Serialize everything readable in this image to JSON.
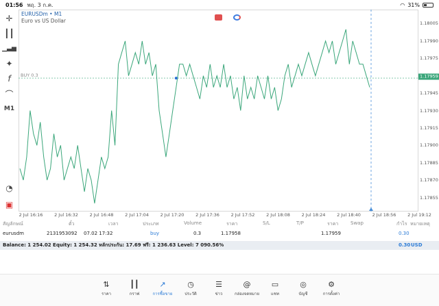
{
  "status": {
    "time": "01:56",
    "date": "พฤ. 3 ก.ค.",
    "battery": "31%"
  },
  "chart": {
    "symbol": "EURUSDm",
    "timeframe_suffix": "• M1",
    "description": "Euro vs US Dollar",
    "timeframe_label": "M1",
    "buy_line_label": "BUY 0.3",
    "current_price": "1.17959",
    "y_ticks": [
      "1.18005",
      "1.17990",
      "1.17975",
      "1.17959",
      "1.17945",
      "1.17930",
      "1.17915",
      "1.17900",
      "1.17885",
      "1.17870",
      "1.17855"
    ],
    "x_ticks": [
      "2 Jul 16:16",
      "2 Jul 16:32",
      "2 Jul 16:48",
      "2 Jul 17:04",
      "2 Jul 17:20",
      "2 Jul 17:36",
      "2 Jul 17:52",
      "2 Jul 18:08",
      "2 Jul 18:24",
      "2 Jul 18:40",
      "2 Jul 18:56",
      "2 Jul 19:12"
    ],
    "line_color": "#3aa67a"
  },
  "chart_data": {
    "type": "line",
    "ylim": [
      1.1785,
      1.1801
    ],
    "values": [
      1.1788,
      1.1787,
      1.1789,
      1.1793,
      1.1791,
      1.179,
      1.1792,
      1.1789,
      1.1787,
      1.1788,
      1.1791,
      1.1789,
      1.179,
      1.1787,
      1.1788,
      1.1789,
      1.1788,
      1.179,
      1.1788,
      1.1786,
      1.1788,
      1.1787,
      1.1785,
      1.1787,
      1.1789,
      1.1788,
      1.1789,
      1.1793,
      1.179,
      1.1797,
      1.1798,
      1.1799,
      1.1796,
      1.1797,
      1.1798,
      1.1797,
      1.1799,
      1.1797,
      1.1798,
      1.1796,
      1.1797,
      1.1793,
      1.1791,
      1.1789,
      1.1791,
      1.1793,
      1.1795,
      1.1797,
      1.1797,
      1.1796,
      1.1797,
      1.1796,
      1.1795,
      1.1794,
      1.1796,
      1.1795,
      1.1797,
      1.1795,
      1.1796,
      1.1795,
      1.1797,
      1.1795,
      1.1796,
      1.1794,
      1.1795,
      1.1793,
      1.1796,
      1.1794,
      1.1795,
      1.1794,
      1.1796,
      1.1795,
      1.1794,
      1.1796,
      1.1794,
      1.1795,
      1.1793,
      1.1794,
      1.1796,
      1.1797,
      1.1795,
      1.1796,
      1.1797,
      1.1796,
      1.1797,
      1.1798,
      1.1797,
      1.1796,
      1.1797,
      1.1798,
      1.1799,
      1.1798,
      1.1799,
      1.1797,
      1.1798,
      1.1799,
      1.18,
      1.1797,
      1.1799,
      1.1798,
      1.1797,
      1.1797,
      1.1796,
      1.1795
    ]
  },
  "table": {
    "headers": [
      "สัญลักษณ์",
      "ตั๋ว",
      "เวลา",
      "ประเภท",
      "Volume",
      "ราคา",
      "S/L",
      "T/P",
      "ราคา",
      "Swap",
      "กำไร",
      "หมายเหตุ"
    ],
    "row": {
      "symbol": "eurusdm",
      "ticket": "2131953092",
      "time": "07.02 17:32",
      "type": "buy",
      "volume": "0.3",
      "open_price": "1.17958",
      "sl": "",
      "tp": "",
      "current_price": "1.17959",
      "swap": "",
      "profit": "0.30",
      "comment": ""
    }
  },
  "balance": {
    "text": "Balance: 1 254.02 Equity: 1 254.32 หลักประกัน: 17.69 ฟรี: 1 236.63 Level: 7 090.56%",
    "profit": "0.30",
    "currency": "USD"
  },
  "nav": [
    {
      "label": "ราคา",
      "icon": "arrows-updown-icon"
    },
    {
      "label": "กราฟ",
      "icon": "candles-icon"
    },
    {
      "label": "การซื้อขาย",
      "icon": "trade-chart-icon"
    },
    {
      "label": "ประวัติ",
      "icon": "history-icon"
    },
    {
      "label": "ข่าว",
      "icon": "news-icon"
    },
    {
      "label": "กล่องจดหมาย",
      "icon": "at-icon"
    },
    {
      "label": "แชท",
      "icon": "chat-icon"
    },
    {
      "label": "บัญชี",
      "icon": "account-icon"
    },
    {
      "label": "การตั้งค่า",
      "icon": "settings-icon"
    }
  ]
}
